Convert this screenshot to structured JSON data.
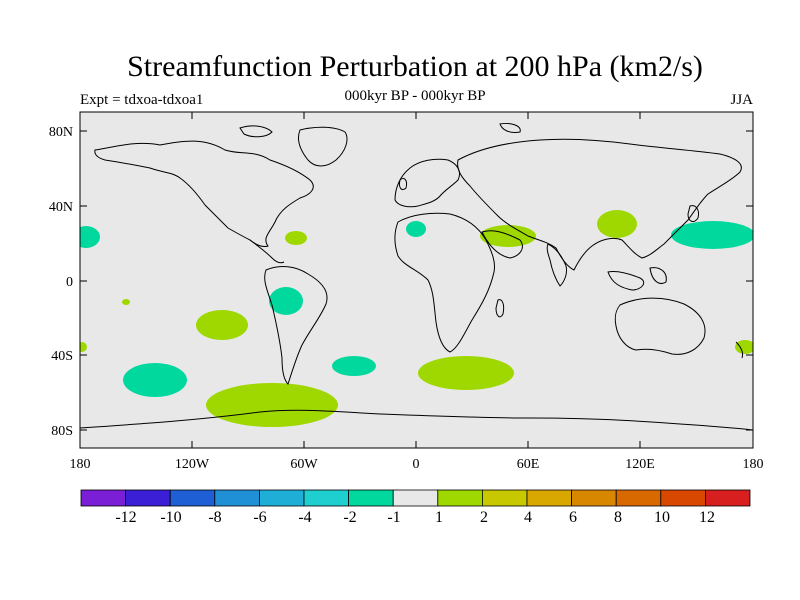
{
  "title": "Streamfunction Perturbation at 200 hPa (km2/s)",
  "subtitle": "000kyr BP - 000kyr BP",
  "left_label": "Expt = tdxoa-tdxoa1",
  "right_label": "JJA",
  "map": {
    "background": "#e8e8e8",
    "lat_ticks": [
      "80N",
      "40N",
      "0",
      "40S",
      "80S"
    ],
    "lon_ticks": [
      "180",
      "120W",
      "60W",
      "0",
      "60E",
      "120E",
      "180"
    ]
  },
  "colorbar": {
    "colors": [
      "#7b1fd6",
      "#3b1fd6",
      "#1f5fd6",
      "#1f8fd6",
      "#1fafd6",
      "#1fcfcf",
      "#00d89e",
      "#e8e8e8",
      "#9ed800",
      "#c8c800",
      "#d8a800",
      "#d88800",
      "#d86800",
      "#d84800",
      "#d81f1f"
    ],
    "labels": [
      "-12",
      "-10",
      "-8",
      "-6",
      "-4",
      "-2",
      "-1",
      "1",
      "2",
      "4",
      "6",
      "8",
      "10",
      "12"
    ]
  },
  "anomaly_colors": {
    "negative": "#00d89e",
    "positive": "#9ed800"
  }
}
